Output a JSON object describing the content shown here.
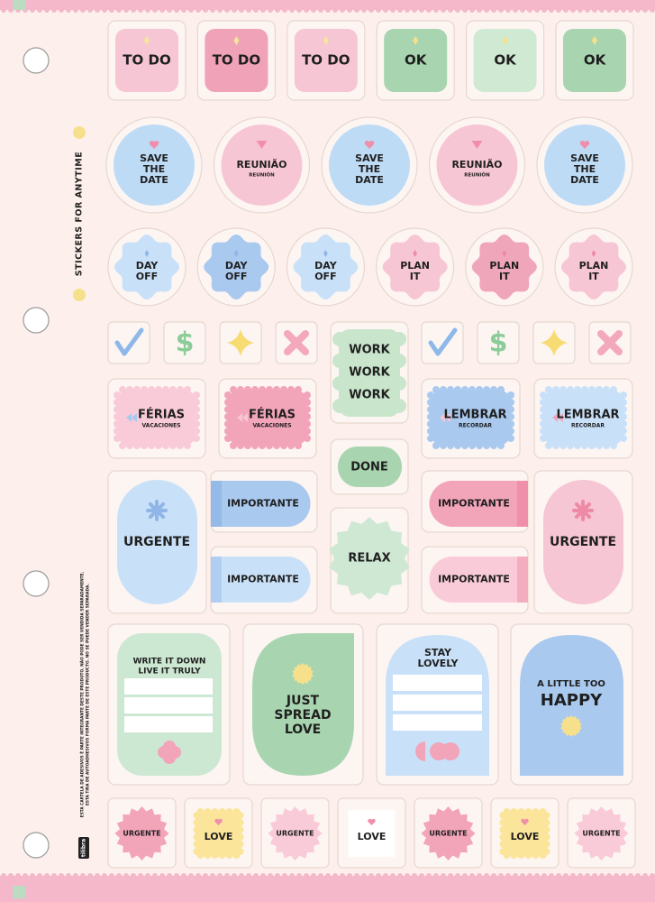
{
  "side_label": "STICKERS FOR ANYTIME",
  "legal": [
    "ESTA CARTELA DE ADESIVOS É PARTE INTEGRANTE DESTE PRODUTO. NÃO PODE SER VENDIDA SEPARADAMENTE.",
    "ESTA TIRA DE AUTOADHESIVOS FORMA PARTE DE ESTE PRODUCTO. NO SE PUEDE VENDER SEPARADA."
  ],
  "brand": "tilibra",
  "row1": [
    "TO DO",
    "TO DO",
    "TO DO",
    "OK",
    "OK",
    "OK"
  ],
  "row2": [
    {
      "lines": [
        "SAVE",
        "THE",
        "DATE"
      ]
    },
    {
      "lines": [
        "REUNIÃO"
      ],
      "sub": "REUNIÓN"
    },
    {
      "lines": [
        "SAVE",
        "THE",
        "DATE"
      ]
    },
    {
      "lines": [
        "REUNIÃO"
      ],
      "sub": "REUNIÓN"
    },
    {
      "lines": [
        "SAVE",
        "THE",
        "DATE"
      ]
    }
  ],
  "row3": [
    {
      "lines": [
        "DAY",
        "OFF"
      ]
    },
    {
      "lines": [
        "DAY",
        "OFF"
      ]
    },
    {
      "lines": [
        "DAY",
        "OFF"
      ]
    },
    {
      "lines": [
        "PLAN",
        "IT"
      ]
    },
    {
      "lines": [
        "PLAN",
        "IT"
      ]
    },
    {
      "lines": [
        "PLAN",
        "IT"
      ]
    }
  ],
  "dollar": "$",
  "work": [
    "WORK",
    "WORK",
    "WORK"
  ],
  "banners": [
    {
      "title": "FÉRIAS",
      "sub": "VACACIONES"
    },
    {
      "title": "FÉRIAS",
      "sub": "VACACIONES"
    },
    {
      "title": "LEMBRAR",
      "sub": "RECORDAR"
    },
    {
      "title": "LEMBRAR",
      "sub": "RECORDAR"
    }
  ],
  "done": "DONE",
  "urgente": [
    "URGENTE",
    "URGENTE"
  ],
  "importante": [
    "IMPORTANTE",
    "IMPORTANTE",
    "IMPORTANTE",
    "IMPORTANTE"
  ],
  "relax": "RELAX",
  "cards": [
    {
      "lines": [
        "WRITE IT DOWN",
        "LIVE IT TRULY"
      ]
    },
    {
      "lines": [
        "JUST",
        "SPREAD",
        "LOVE"
      ]
    },
    {
      "lines": [
        "STAY",
        "LOVELY"
      ]
    },
    {
      "lines": [
        "A LITTLE TOO",
        "HAPPY"
      ]
    }
  ],
  "bottom": [
    "URGENTE",
    "LOVE",
    "URGENTE",
    "LOVE",
    "URGENTE",
    "LOVE",
    "URGENTE"
  ]
}
